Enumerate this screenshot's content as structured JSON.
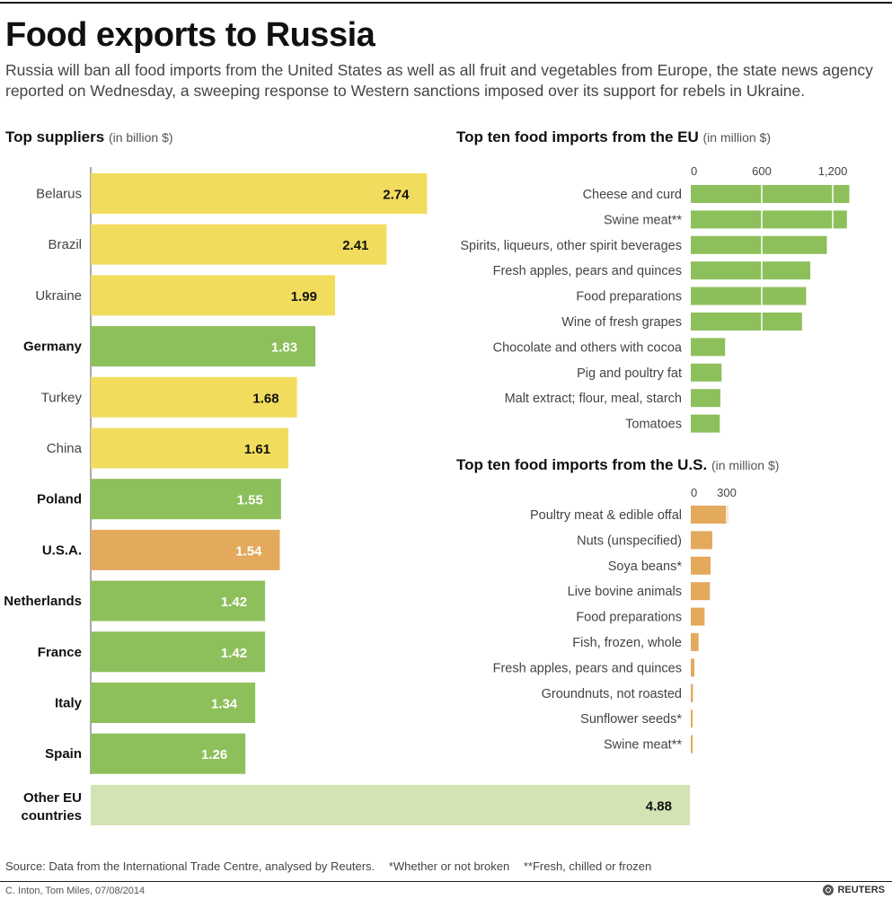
{
  "header": {
    "title": "Food exports to Russia",
    "subtitle": "Russia will ban all food imports from the United States as well as all fruit and vegetables from Europe, the state news agency reported on Wednesday, a sweeping response to Western sanctions imposed over its support for rebels in Ukraine."
  },
  "colors": {
    "non_eu": "#f2dc5d",
    "eu": "#8dc05b",
    "usa": "#e3a95c",
    "other_eu": "#d3e3b3",
    "eu_imports": "#8dc05b",
    "us_imports": "#e3a95c"
  },
  "chart_data": [
    {
      "type": "bar",
      "orientation": "horizontal",
      "title": "Top suppliers",
      "unit": "(in billion $)",
      "categories": [
        "Belarus",
        "Brazil",
        "Ukraine",
        "Germany",
        "Turkey",
        "China",
        "Poland",
        "U.S.A.",
        "Netherlands",
        "France",
        "Italy",
        "Spain",
        "Other EU countries"
      ],
      "values": [
        2.74,
        2.41,
        1.99,
        1.83,
        1.68,
        1.61,
        1.55,
        1.54,
        1.42,
        1.42,
        1.34,
        1.26,
        4.88
      ],
      "value_labels": [
        "2.74",
        "2.41",
        "1.99",
        "1.83",
        "1.68",
        "1.61",
        "1.55",
        "1.54",
        "1.42",
        "1.42",
        "1.34",
        "1.26",
        "4.88"
      ],
      "groups": [
        "non_eu",
        "non_eu",
        "non_eu",
        "eu",
        "non_eu",
        "non_eu",
        "eu",
        "usa",
        "eu",
        "eu",
        "eu",
        "eu",
        "other_eu"
      ],
      "xlim": [
        0,
        4.88
      ]
    },
    {
      "type": "bar",
      "orientation": "horizontal",
      "title": "Top ten food imports from the EU",
      "unit": "(in million $)",
      "categories": [
        "Cheese and curd",
        "Swine meat**",
        "Spirits, liqueurs, other spirit beverages",
        "Fresh apples, pears and quinces",
        "Food preparations",
        "Wine of fresh grapes",
        "Chocolate and others with cocoa",
        "Pig and poultry fat",
        "Malt extract; flour, meal, starch",
        "Tomatoes"
      ],
      "values": [
        1340,
        1320,
        1150,
        1010,
        975,
        940,
        290,
        260,
        250,
        245
      ],
      "xlim": [
        0,
        1400
      ],
      "xticks": [
        0,
        600,
        1200
      ],
      "xtick_labels": [
        "0",
        "600",
        "1,200"
      ]
    },
    {
      "type": "bar",
      "orientation": "horizontal",
      "title": "Top ten food imports from the U.S.",
      "unit": "(in million $)",
      "categories": [
        "Poultry meat & edible offal",
        "Nuts (unspecified)",
        "Soya beans*",
        "Live bovine animals",
        "Food preparations",
        "Fish, frozen, whole",
        "Fresh apples, pears and quinces",
        "Groundnuts, not roasted",
        "Sunflower seeds*",
        "Swine meat**"
      ],
      "values": [
        310,
        180,
        165,
        160,
        115,
        65,
        30,
        18,
        12,
        10
      ],
      "xlim": [
        0,
        450
      ],
      "xticks": [
        0,
        300
      ],
      "xtick_labels": [
        "0",
        "300"
      ]
    }
  ],
  "footer": {
    "source": "Source: Data from the International Trade Centre, analysed by Reuters.",
    "note1": "*Whether or not broken",
    "note2": "**Fresh, chilled or frozen",
    "credit": "C. Inton, Tom Miles, 07/08/2014",
    "brand": "REUTERS"
  }
}
